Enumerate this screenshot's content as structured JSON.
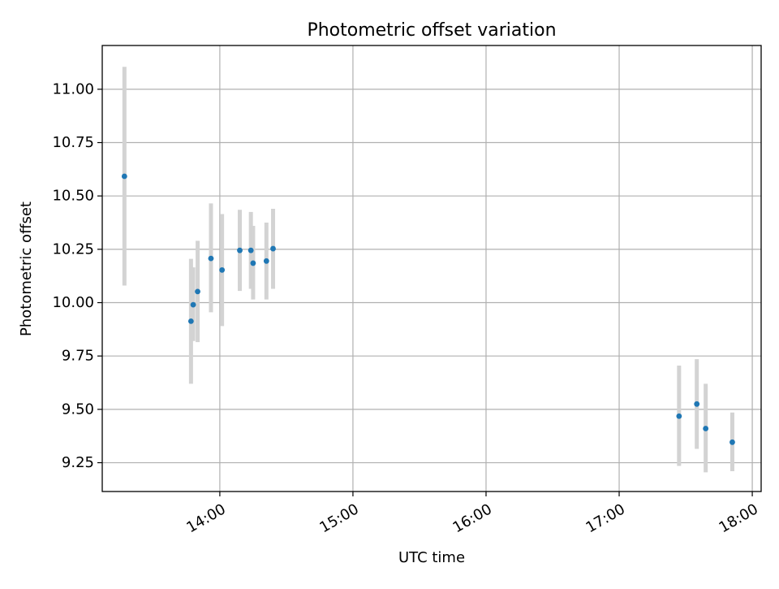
{
  "chart_data": {
    "type": "scatter",
    "title": "Photometric offset variation",
    "xlabel": "UTC time",
    "ylabel": "Photometric offset",
    "xlim": [
      "13:07",
      "18:04"
    ],
    "ylim": [
      9.115,
      11.205
    ],
    "x_ticks": [
      "14:00",
      "15:00",
      "16:00",
      "17:00",
      "18:00"
    ],
    "y_ticks": [
      "9.25",
      "9.50",
      "9.75",
      "10.00",
      "10.25",
      "10.50",
      "10.75",
      "11.00"
    ],
    "grid": true,
    "error_bar_color": "#d3d3d3",
    "point_color": "#1f77b4",
    "points": [
      {
        "x": "13:17",
        "y": 10.592,
        "err_low": 10.08,
        "err_high": 11.105
      },
      {
        "x": "13:47",
        "y": 9.913,
        "err_low": 9.62,
        "err_high": 10.205
      },
      {
        "x": "13:48",
        "y": 9.99,
        "err_low": 9.82,
        "err_high": 10.165
      },
      {
        "x": "13:50",
        "y": 10.052,
        "err_low": 9.815,
        "err_high": 10.29
      },
      {
        "x": "13:56",
        "y": 10.207,
        "err_low": 9.955,
        "err_high": 10.465
      },
      {
        "x": "14:01",
        "y": 10.153,
        "err_low": 9.89,
        "err_high": 10.415
      },
      {
        "x": "14:09",
        "y": 10.245,
        "err_low": 10.055,
        "err_high": 10.435
      },
      {
        "x": "14:14",
        "y": 10.245,
        "err_low": 10.065,
        "err_high": 10.425
      },
      {
        "x": "14:15",
        "y": 10.185,
        "err_low": 10.015,
        "err_high": 10.36
      },
      {
        "x": "14:21",
        "y": 10.195,
        "err_low": 10.015,
        "err_high": 10.375
      },
      {
        "x": "14:24",
        "y": 10.253,
        "err_low": 10.065,
        "err_high": 10.44
      },
      {
        "x": "17:27",
        "y": 9.468,
        "err_low": 9.235,
        "err_high": 9.705
      },
      {
        "x": "17:35",
        "y": 9.525,
        "err_low": 9.315,
        "err_high": 9.735
      },
      {
        "x": "17:39",
        "y": 9.41,
        "err_low": 9.205,
        "err_high": 9.62
      },
      {
        "x": "17:51",
        "y": 9.346,
        "err_low": 9.21,
        "err_high": 9.485
      }
    ]
  }
}
